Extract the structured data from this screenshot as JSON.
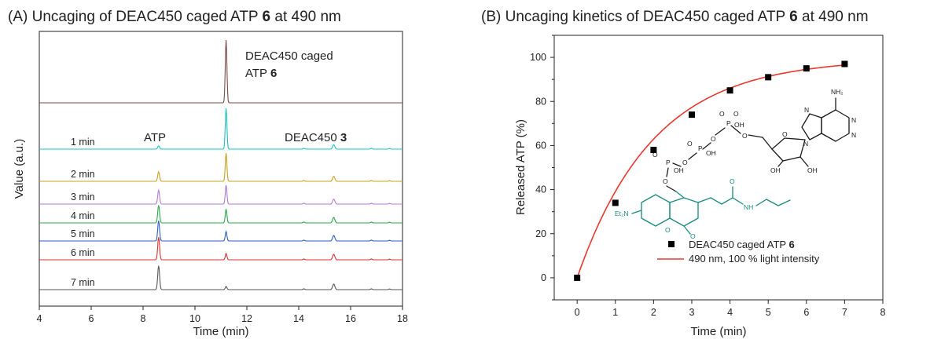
{
  "chart_data": [
    {
      "type": "line",
      "panel": "A",
      "title_prefix": "(A) Uncaging of DEAC450 caged ATP ",
      "title_bold": "6",
      "title_suffix": " at 490 nm",
      "xlabel": "Time (min)",
      "ylabel": "Value (a.u.)",
      "xlim": [
        4,
        18
      ],
      "xticks": [
        4,
        6,
        8,
        10,
        12,
        14,
        16,
        18
      ],
      "grid": false,
      "peak_times": {
        "atp": 8.6,
        "caged_atp": 11.2,
        "deac450": 15.35
      },
      "annotations": {
        "caged_line1": "DEAC450 caged",
        "caged_line2_prefix": "ATP ",
        "caged_line2_bold": "6",
        "atp": "ATP",
        "deac_prefix": "DEAC450 ",
        "deac_bold": "3"
      },
      "series": [
        {
          "name": "",
          "color": "#7b4a42",
          "atp": 0.0,
          "caged": 1.0,
          "deac": 0.0
        },
        {
          "name": "1 min",
          "color": "#19c3c3",
          "atp": 0.05,
          "caged": 0.65,
          "deac": 0.07
        },
        {
          "name": "2 min",
          "color": "#c8a020",
          "atp": 0.15,
          "caged": 0.45,
          "deac": 0.08
        },
        {
          "name": "3 min",
          "color": "#b07ad8",
          "atp": 0.22,
          "caged": 0.3,
          "deac": 0.08
        },
        {
          "name": "4 min",
          "color": "#2aa84a",
          "atp": 0.28,
          "caged": 0.22,
          "deac": 0.09
        },
        {
          "name": "5 min",
          "color": "#2a5ec8",
          "atp": 0.32,
          "caged": 0.15,
          "deac": 0.09
        },
        {
          "name": "6 min",
          "color": "#e03030",
          "atp": 0.36,
          "caged": 0.1,
          "deac": 0.09
        },
        {
          "name": "7 min",
          "color": "#555555",
          "atp": 0.38,
          "caged": 0.05,
          "deac": 0.09
        }
      ]
    },
    {
      "type": "scatter",
      "panel": "B",
      "title_prefix": "(B) Uncaging kinetics of DEAC450 caged ATP ",
      "title_bold": "6",
      "title_suffix": " at 490 nm",
      "xlabel": "Time (min)",
      "ylabel": "Released ATP (%)",
      "xlim": [
        -0.6,
        8
      ],
      "ylim": [
        -10,
        110
      ],
      "xticks": [
        0,
        1,
        2,
        3,
        4,
        5,
        6,
        7,
        8
      ],
      "yticks": [
        0,
        20,
        40,
        60,
        80,
        100
      ],
      "grid": false,
      "legend_position": "bottom-right",
      "series": [
        {
          "name_prefix": "DEAC450 caged ATP ",
          "name_bold": "6",
          "kind": "scatter",
          "color": "#000000",
          "x": [
            0,
            1,
            2,
            3,
            4,
            5,
            6,
            7
          ],
          "y": [
            0,
            34,
            58,
            74,
            85,
            91,
            95,
            97
          ]
        },
        {
          "name": "490 nm, 100 % light intensity",
          "kind": "fit",
          "color": "#e8392f",
          "model": "y = A(1 - exp(-k t))",
          "A": 99.5,
          "k": 0.5,
          "x_range": [
            0,
            7
          ]
        }
      ],
      "structure_labels": {
        "nh2": "NH₂",
        "o": "O",
        "oh": "OH",
        "p": "P",
        "n": "N",
        "nh": "NH",
        "et2n": "Et₂N"
      }
    }
  ]
}
